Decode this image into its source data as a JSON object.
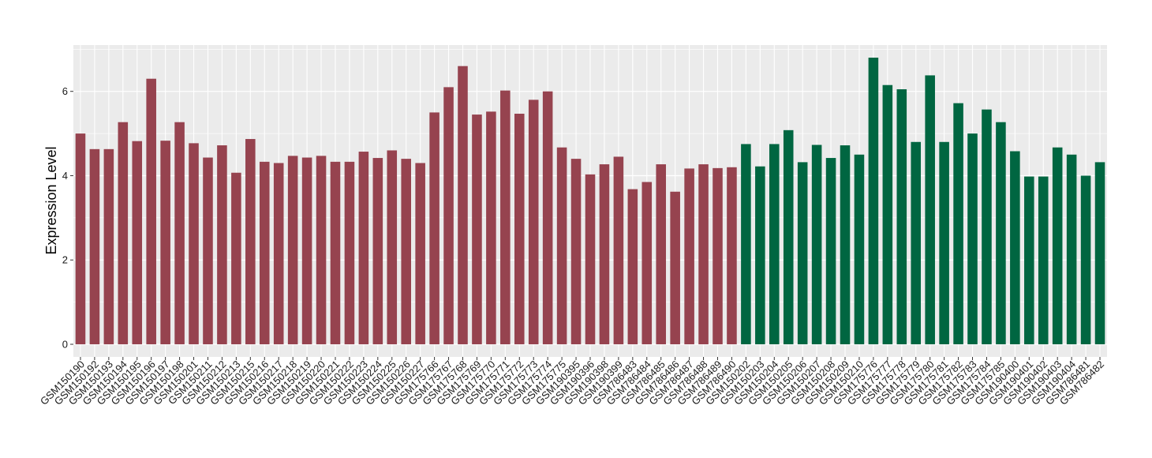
{
  "chart_data": {
    "type": "bar",
    "title": "",
    "xlabel": "",
    "ylabel": "Expression Level",
    "ylim": [
      -0.3,
      7.1
    ],
    "yticks": [
      0,
      2,
      4,
      6
    ],
    "grid": true,
    "legend": "none",
    "categories": [
      "GSM150190",
      "GSM150192",
      "GSM150193",
      "GSM150194",
      "GSM150195",
      "GSM150196",
      "GSM150197",
      "GSM150198",
      "GSM150201",
      "GSM150211",
      "GSM150212",
      "GSM150213",
      "GSM150215",
      "GSM150216",
      "GSM150217",
      "GSM150218",
      "GSM150219",
      "GSM150220",
      "GSM150221",
      "GSM150222",
      "GSM150223",
      "GSM150224",
      "GSM150225",
      "GSM150226",
      "GSM150227",
      "GSM175766",
      "GSM175767",
      "GSM175768",
      "GSM175769",
      "GSM175770",
      "GSM175771",
      "GSM175772",
      "GSM175773",
      "GSM175774",
      "GSM175775",
      "GSM190395",
      "GSM190396",
      "GSM190398",
      "GSM190399",
      "GSM786483",
      "GSM786484",
      "GSM786485",
      "GSM786486",
      "GSM786487",
      "GSM786488",
      "GSM786489",
      "GSM786490",
      "GSM150202",
      "GSM150203",
      "GSM150204",
      "GSM150205",
      "GSM150206",
      "GSM150207",
      "GSM150208",
      "GSM150209",
      "GSM150210",
      "GSM175776",
      "GSM175777",
      "GSM175778",
      "GSM175779",
      "GSM175780",
      "GSM175781",
      "GSM175782",
      "GSM175783",
      "GSM175784",
      "GSM175785",
      "GSM190400",
      "GSM190401",
      "GSM190402",
      "GSM190403",
      "GSM190404",
      "GSM786481",
      "GSM786482"
    ],
    "values": [
      5.0,
      4.63,
      4.63,
      5.27,
      4.82,
      6.3,
      4.83,
      5.27,
      4.77,
      4.43,
      4.72,
      4.07,
      4.87,
      4.33,
      4.3,
      4.47,
      4.43,
      4.47,
      4.33,
      4.33,
      4.57,
      4.42,
      4.6,
      4.4,
      4.3,
      5.5,
      6.1,
      6.6,
      5.45,
      5.52,
      6.02,
      5.47,
      5.8,
      6.0,
      4.67,
      4.4,
      4.03,
      4.27,
      4.45,
      3.68,
      3.85,
      4.27,
      3.62,
      4.17,
      4.27,
      4.18,
      4.2,
      4.75,
      4.22,
      4.75,
      5.08,
      4.32,
      4.73,
      4.42,
      4.72,
      4.5,
      6.8,
      6.15,
      6.05,
      4.8,
      6.38,
      4.8,
      5.72,
      5.0,
      5.57,
      5.27,
      4.58,
      3.98,
      3.98,
      4.67,
      4.5,
      4.0,
      4.32
    ],
    "group_sizes": [
      47,
      26
    ],
    "colors": [
      "#96434f",
      "#006641"
    ],
    "background": "#ebebeb",
    "gridline_color": "#ffffff"
  }
}
